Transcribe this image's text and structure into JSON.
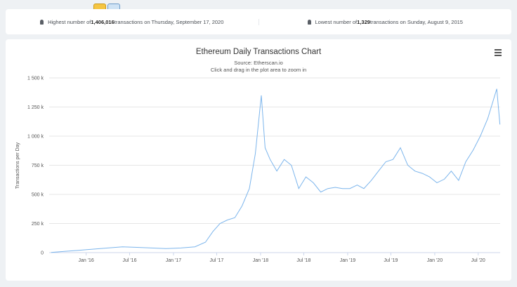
{
  "stats": {
    "high": {
      "prefix": "Highest number of ",
      "value": "1,406,016",
      "suffix": " transactions on Thursday, September 17, 2020"
    },
    "low": {
      "prefix": "Lowest number of ",
      "value": "1,329",
      "suffix": " transactions on Sunday, August 9, 2015"
    }
  },
  "chart_data": {
    "type": "line",
    "title": "Ethereum Daily Transactions Chart",
    "subtitle": "Source: Etherscan.io",
    "hint": "Click and drag in the plot area to zoom in",
    "ylabel": "Transactions per Day",
    "ylim": [
      0,
      1500000
    ],
    "y_ticks": [
      0,
      250000,
      500000,
      750000,
      1000000,
      1250000,
      1500000
    ],
    "y_tick_labels": [
      "0",
      "250 k",
      "500 k",
      "750 k",
      "1 000 k",
      "1 250 k",
      "1 500 k"
    ],
    "x_tick_labels": [
      "Jan '16",
      "Jul '16",
      "Jan '17",
      "Jul '17",
      "Jan '18",
      "Jul '18",
      "Jan '19",
      "Jul '19",
      "Jan '20",
      "Jul '20"
    ],
    "x_ticks": [
      "2016-01-01",
      "2016-07-01",
      "2017-01-01",
      "2017-07-01",
      "2018-01-01",
      "2018-07-01",
      "2019-01-01",
      "2019-07-01",
      "2020-01-01",
      "2020-07-01"
    ],
    "xlim": [
      "2015-07-30",
      "2020-10-01"
    ],
    "grid": true,
    "line_color": "#7cb5ec",
    "series": [
      {
        "x": [
          "2015-08-07",
          "2015-10-01",
          "2015-12-01",
          "2016-02-01",
          "2016-04-01",
          "2016-06-01",
          "2016-08-01",
          "2016-10-01",
          "2016-12-01",
          "2017-02-01",
          "2017-04-01",
          "2017-05-15",
          "2017-06-15",
          "2017-07-15",
          "2017-08-15",
          "2017-09-15",
          "2017-10-15",
          "2017-11-15",
          "2017-12-10",
          "2018-01-04",
          "2018-01-20",
          "2018-02-10",
          "2018-03-10",
          "2018-04-10",
          "2018-05-10",
          "2018-06-10",
          "2018-07-10",
          "2018-08-10",
          "2018-09-10",
          "2018-10-10",
          "2018-11-10",
          "2018-12-10",
          "2019-01-10",
          "2019-02-10",
          "2019-03-10",
          "2019-04-10",
          "2019-05-10",
          "2019-06-10",
          "2019-07-10",
          "2019-08-10",
          "2019-09-10",
          "2019-10-10",
          "2019-11-10",
          "2019-12-10",
          "2020-01-10",
          "2020-02-10",
          "2020-03-10",
          "2020-04-10",
          "2020-05-10",
          "2020-06-10",
          "2020-07-10",
          "2020-08-10",
          "2020-09-17",
          "2020-09-30"
        ],
        "y": [
          1329,
          10000,
          20000,
          30000,
          40000,
          50000,
          45000,
          40000,
          35000,
          40000,
          50000,
          90000,
          180000,
          250000,
          280000,
          300000,
          400000,
          550000,
          850000,
          1350000,
          900000,
          800000,
          700000,
          800000,
          750000,
          550000,
          650000,
          600000,
          520000,
          550000,
          560000,
          550000,
          550000,
          580000,
          550000,
          620000,
          700000,
          780000,
          800000,
          900000,
          750000,
          700000,
          680000,
          650000,
          600000,
          630000,
          700000,
          620000,
          780000,
          880000,
          1000000,
          1150000,
          1406016,
          1100000
        ]
      }
    ]
  }
}
